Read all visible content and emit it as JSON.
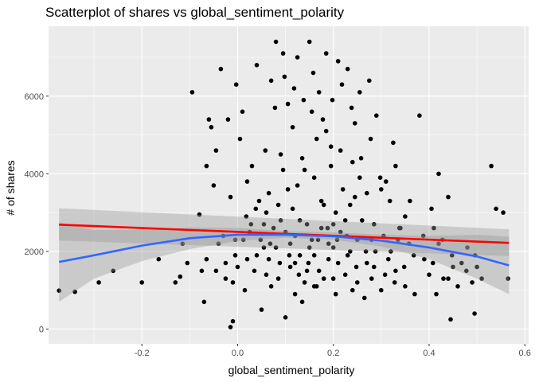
{
  "chart_data": {
    "type": "scatter",
    "title": "Scatterplot of shares vs global_sentiment_polarity",
    "xlabel": "global_sentiment_polarity",
    "ylabel": "# of shares",
    "xlim": [
      -0.395,
      0.608
    ],
    "ylim": [
      -380,
      7800
    ],
    "x_ticks": [
      -0.4,
      -0.2,
      0.0,
      0.2,
      0.4,
      0.6
    ],
    "x_tick_labels": [
      "-0.4",
      "-0.2",
      "0.0",
      "0.2",
      "0.4",
      "0.6"
    ],
    "y_ticks": [
      0,
      2000,
      4000,
      6000
    ],
    "y_tick_labels": [
      "0",
      "2000",
      "4000",
      "6000"
    ],
    "grid": true,
    "legend": "none",
    "colors": {
      "panel": "#ebebeb",
      "grid": "#ffffff",
      "points": "#000000",
      "linear_fit": "#ff0000",
      "loess_fit": "#3366ff",
      "ribbon": "#999999"
    },
    "points": [
      [
        -0.373,
        990
      ],
      [
        -0.34,
        960
      ],
      [
        -0.29,
        1200
      ],
      [
        -0.26,
        1500
      ],
      [
        -0.2,
        1200
      ],
      [
        -0.165,
        1800
      ],
      [
        -0.13,
        1200
      ],
      [
        -0.12,
        1350
      ],
      [
        -0.115,
        2200
      ],
      [
        -0.105,
        1700
      ],
      [
        -0.095,
        6100
      ],
      [
        -0.08,
        2950
      ],
      [
        -0.075,
        1500
      ],
      [
        -0.07,
        700
      ],
      [
        -0.065,
        4200
      ],
      [
        -0.06,
        5400
      ],
      [
        -0.055,
        5200
      ],
      [
        -0.05,
        3700
      ],
      [
        -0.045,
        4600
      ],
      [
        -0.04,
        2200
      ],
      [
        -0.035,
        6700
      ],
      [
        -0.03,
        2400
      ],
      [
        -0.025,
        1300
      ],
      [
        -0.02,
        5400
      ],
      [
        -0.015,
        3400
      ],
      [
        -0.01,
        1200
      ],
      [
        -0.005,
        2300
      ],
      [
        -0.003,
        6300
      ],
      [
        -0.01,
        200
      ],
      [
        -0.015,
        50
      ],
      [
        0.005,
        4900
      ],
      [
        0.01,
        5600
      ],
      [
        0.015,
        1000
      ],
      [
        0.02,
        3800
      ],
      [
        0.025,
        2500
      ],
      [
        0.03,
        4200
      ],
      [
        0.035,
        1500
      ],
      [
        0.04,
        6800
      ],
      [
        0.045,
        3300
      ],
      [
        0.05,
        500
      ],
      [
        0.055,
        2100
      ],
      [
        0.06,
        3000
      ],
      [
        0.065,
        1800
      ],
      [
        0.07,
        6400
      ],
      [
        0.075,
        2600
      ],
      [
        0.08,
        7400
      ],
      [
        0.085,
        1300
      ],
      [
        0.09,
        4500
      ],
      [
        0.095,
        7100
      ],
      [
        0.1,
        300
      ],
      [
        0.105,
        3600
      ],
      [
        0.11,
        2200
      ],
      [
        0.115,
        5200
      ],
      [
        0.12,
        1700
      ],
      [
        0.125,
        7000
      ],
      [
        0.13,
        2800
      ],
      [
        0.135,
        700
      ],
      [
        0.14,
        4100
      ],
      [
        0.145,
        1500
      ],
      [
        0.15,
        7400
      ],
      [
        0.155,
        2300
      ],
      [
        0.16,
        3900
      ],
      [
        0.165,
        1100
      ],
      [
        0.17,
        6100
      ],
      [
        0.175,
        2600
      ],
      [
        0.18,
        3200
      ],
      [
        0.185,
        7100
      ],
      [
        0.19,
        1800
      ],
      [
        0.195,
        4700
      ],
      [
        0.2,
        2100
      ],
      [
        0.205,
        900
      ],
      [
        0.21,
        6900
      ],
      [
        0.215,
        2500
      ],
      [
        0.22,
        3600
      ],
      [
        0.225,
        1400
      ],
      [
        0.23,
        6700
      ],
      [
        0.235,
        2000
      ],
      [
        0.24,
        4300
      ],
      [
        0.245,
        5300
      ],
      [
        0.25,
        1200
      ],
      [
        0.255,
        6100
      ],
      [
        0.26,
        2800
      ],
      [
        0.265,
        800
      ],
      [
        0.27,
        3500
      ],
      [
        0.275,
        6400
      ],
      [
        0.28,
        2300
      ],
      [
        0.285,
        1600
      ],
      [
        0.29,
        5500
      ],
      [
        0.3,
        1000
      ],
      [
        0.31,
        3800
      ],
      [
        0.32,
        2000
      ],
      [
        0.325,
        4800
      ],
      [
        0.33,
        1500
      ],
      [
        0.34,
        2600
      ],
      [
        0.35,
        1100
      ],
      [
        0.36,
        3300
      ],
      [
        0.37,
        900
      ],
      [
        0.38,
        5500
      ],
      [
        0.39,
        1800
      ],
      [
        0.4,
        1400
      ],
      [
        0.405,
        3100
      ],
      [
        0.41,
        2600
      ],
      [
        0.415,
        900
      ],
      [
        0.42,
        2200
      ],
      [
        0.43,
        1300
      ],
      [
        0.44,
        3400
      ],
      [
        0.445,
        250
      ],
      [
        0.45,
        1600
      ],
      [
        0.46,
        1100
      ],
      [
        0.48,
        2100
      ],
      [
        0.49,
        1200
      ],
      [
        0.495,
        400
      ],
      [
        0.5,
        1600
      ],
      [
        0.51,
        1300
      ],
      [
        0.53,
        4200
      ],
      [
        0.54,
        3100
      ],
      [
        0.555,
        3000
      ],
      [
        0.565,
        1300
      ],
      [
        0.42,
        4000
      ],
      [
        0.3,
        3600
      ],
      [
        0.33,
        4200
      ],
      [
        0.35,
        2900
      ],
      [
        0.44,
        1300
      ],
      [
        0.08,
        2100
      ],
      [
        0.12,
        2400
      ],
      [
        0.16,
        1900
      ],
      [
        0.2,
        2700
      ],
      [
        0.14,
        1200
      ],
      [
        0.11,
        1600
      ],
      [
        0.09,
        2800
      ],
      [
        0.13,
        1900
      ],
      [
        0.17,
        1500
      ],
      [
        0.19,
        2200
      ],
      [
        0.21,
        1700
      ],
      [
        0.06,
        1400
      ],
      [
        0.04,
        1900
      ],
      [
        0.1,
        2500
      ],
      [
        0.15,
        2100
      ],
      [
        0.18,
        1300
      ],
      [
        0.23,
        1900
      ],
      [
        0.25,
        2300
      ],
      [
        0.27,
        1700
      ],
      [
        0.02,
        1800
      ],
      [
        0.0,
        1600
      ],
      [
        0.07,
        1100
      ],
      [
        0.12,
        900
      ],
      [
        0.16,
        1100
      ],
      [
        0.2,
        1300
      ],
      [
        0.24,
        1000
      ],
      [
        0.28,
        1300
      ],
      [
        0.115,
        3100
      ],
      [
        0.145,
        2700
      ],
      [
        0.175,
        3300
      ],
      [
        0.205,
        3000
      ],
      [
        0.085,
        3200
      ],
      [
        0.055,
        2700
      ],
      [
        0.135,
        4400
      ],
      [
        0.165,
        4900
      ],
      [
        0.195,
        4200
      ],
      [
        0.105,
        5800
      ],
      [
        0.155,
        5600
      ],
      [
        0.185,
        5100
      ],
      [
        0.125,
        3700
      ],
      [
        0.095,
        4100
      ],
      [
        0.215,
        4600
      ],
      [
        0.235,
        3200
      ],
      [
        0.255,
        3900
      ],
      [
        0.065,
        3500
      ],
      [
        0.225,
        2800
      ],
      [
        0.245,
        3400
      ],
      [
        0.285,
        2700
      ],
      [
        0.305,
        2400
      ],
      [
        0.315,
        1800
      ],
      [
        0.335,
        2300
      ],
      [
        0.012,
        2300
      ],
      [
        0.028,
        2700
      ],
      [
        0.048,
        2300
      ],
      [
        0.068,
        2200
      ],
      [
        0.088,
        1700
      ],
      [
        0.108,
        1900
      ],
      [
        0.128,
        1400
      ],
      [
        0.148,
        1700
      ],
      [
        0.168,
        2300
      ],
      [
        0.188,
        2600
      ],
      [
        0.208,
        2300
      ],
      [
        0.228,
        2400
      ],
      [
        0.248,
        1600
      ],
      [
        0.268,
        2000
      ],
      [
        0.288,
        2000
      ],
      [
        0.308,
        1400
      ],
      [
        0.328,
        1200
      ],
      [
        0.348,
        1600
      ],
      [
        0.368,
        1900
      ],
      [
        0.388,
        2400
      ],
      [
        0.408,
        1700
      ],
      [
        0.428,
        2300
      ],
      [
        0.448,
        1900
      ],
      [
        0.468,
        1700
      ],
      [
        0.478,
        1500
      ],
      [
        0.496,
        1900
      ],
      [
        -0.005,
        1900
      ],
      [
        -0.025,
        1700
      ],
      [
        -0.045,
        1500
      ],
      [
        -0.065,
        1800
      ],
      [
        0.018,
        2900
      ],
      [
        0.038,
        3100
      ],
      [
        0.058,
        4600
      ],
      [
        0.078,
        5700
      ],
      [
        0.098,
        6500
      ],
      [
        0.118,
        6200
      ],
      [
        0.138,
        5900
      ],
      [
        0.158,
        6600
      ],
      [
        0.178,
        5400
      ],
      [
        0.198,
        5900
      ],
      [
        0.218,
        6300
      ],
      [
        0.238,
        5700
      ],
      [
        0.258,
        4400
      ],
      [
        0.278,
        4900
      ],
      [
        0.298,
        3900
      ],
      [
        0.318,
        3300
      ],
      [
        0.338,
        2600
      ],
      [
        0.358,
        2200
      ]
    ],
    "series": [
      {
        "name": "linear_fit",
        "x": [
          -0.373,
          0.567
        ],
        "y": [
          2690,
          2220
        ],
        "ribbon_lower": [
          2280,
          1880
        ],
        "ribbon_upper": [
          3110,
          2570
        ]
      },
      {
        "name": "loess_fit",
        "x": [
          -0.373,
          -0.3,
          -0.2,
          -0.1,
          0.0,
          0.1,
          0.2,
          0.3,
          0.4,
          0.5,
          0.567
        ],
        "y": [
          1730,
          1900,
          2150,
          2340,
          2430,
          2430,
          2390,
          2280,
          2100,
          1870,
          1640
        ],
        "ribbon_lower": [
          700,
          1300,
          1750,
          2060,
          2270,
          2350,
          2300,
          2130,
          1800,
          1300,
          900
        ],
        "ribbon_upper": [
          2750,
          2550,
          2560,
          2620,
          2610,
          2520,
          2490,
          2430,
          2400,
          2430,
          2380
        ]
      }
    ]
  }
}
